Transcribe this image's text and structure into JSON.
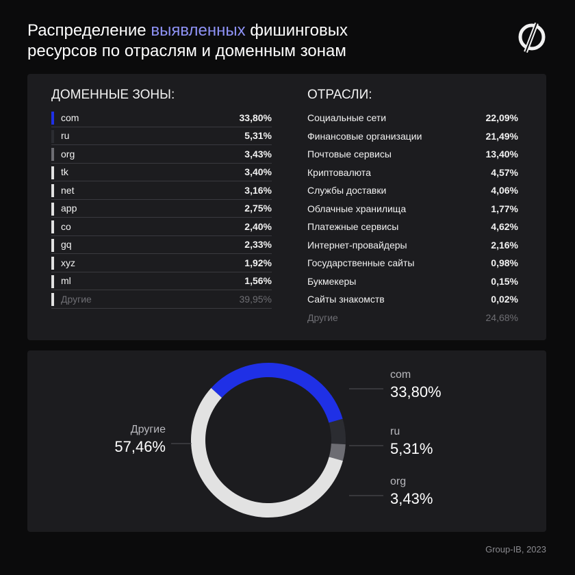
{
  "header": {
    "title": [
      "Распределение",
      "выявленных",
      "фишинговых",
      "ресурсов по отраслям и доменным зонам"
    ]
  },
  "domains": {
    "heading": "ДОМЕННЫЕ ЗОНЫ:",
    "rows": [
      [
        "com",
        "33,80%"
      ],
      [
        "ru",
        "5,31%"
      ],
      [
        "org",
        "3,43%"
      ],
      [
        "tk",
        "3,40%"
      ],
      [
        "net",
        "3,16%"
      ],
      [
        "app",
        "2,75%"
      ],
      [
        "co",
        "2,40%"
      ],
      [
        "gq",
        "2,33%"
      ],
      [
        "xyz",
        "1,92%"
      ],
      [
        "ml",
        "1,56%"
      ],
      [
        "Другие",
        "39,95%"
      ]
    ]
  },
  "industries": {
    "heading": "ОТРАСЛИ:",
    "rows": [
      [
        "Социальные сети",
        "22,09%"
      ],
      [
        "Финансовые организации",
        "21,49%"
      ],
      [
        "Почтовые сервисы",
        "13,40%"
      ],
      [
        "Криптовалюта",
        "4,57%"
      ],
      [
        "Службы доставки",
        "4,06%"
      ],
      [
        "Облачные хранилища",
        "1,77%"
      ],
      [
        "Платежные сервисы",
        "4,62%"
      ],
      [
        "Интернет-провайдеры",
        "2,16%"
      ],
      [
        "Государственные сайты",
        "0,98%"
      ],
      [
        "Букмекеры",
        "0,15%"
      ],
      [
        "Сайты знакомств",
        "0,02%"
      ],
      [
        "Другие",
        "24,68%"
      ]
    ]
  },
  "chart_data": {
    "type": "donut",
    "categories": [
      "com",
      "ru",
      "org",
      "Другие"
    ],
    "values": [
      33.8,
      5.31,
      3.43,
      57.46
    ],
    "value_labels": [
      "33,80%",
      "5,31%",
      "3,43%",
      "57,46%"
    ],
    "colors": [
      "#1f30e6",
      "#2b2c31",
      "#6d6d73",
      "#e2e2e2"
    ]
  },
  "footer": {
    "source": "Group-IB, 2023"
  }
}
